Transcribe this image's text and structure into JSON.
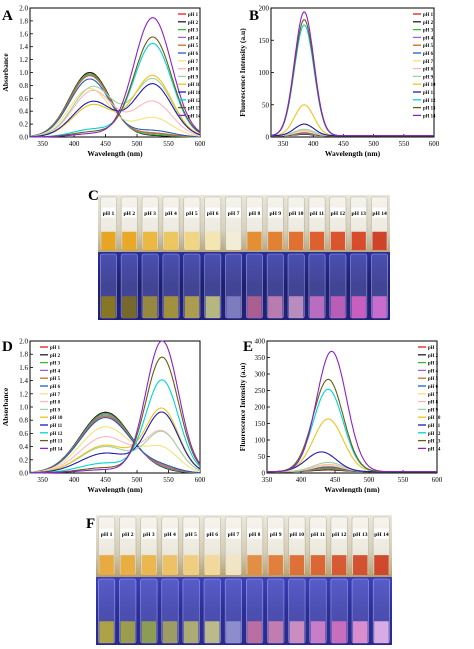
{
  "colors": {
    "pH 1": "#e41a1c",
    "pH 2": "#222222",
    "pH 3": "#2bbf2b",
    "pH 4": "#9966cc",
    "pH 5": "#d2691e",
    "pH 6": "#1f5fbf",
    "pH 7": "#f6e27a",
    "pH 8": "#ffb6c1",
    "pH 9": "#9fd39f",
    "pH 10": "#f0c419",
    "pH 11": "#1c1cb0",
    "pH 12": "#00d5d5",
    "pH 13": "#6b5d10",
    "pH 14": "#8b22c9"
  },
  "panels": {
    "A": "A",
    "B": "B",
    "C": "C",
    "D": "D",
    "E": "E",
    "F": "F"
  },
  "vials": [
    "pH 1",
    "pH 2",
    "pH 3",
    "pH 4",
    "pH 5",
    "pH 6",
    "pH 7",
    "pH 8",
    "pH 9",
    "pH 10",
    "pH 11",
    "pH 12",
    "pH 13",
    "pH 14"
  ],
  "chart_data": [
    {
      "panel": "A",
      "type": "line",
      "xlabel": "Wavelength (nm)",
      "ylabel": "Absorbance",
      "xlim": [
        330,
        600
      ],
      "ylim": [
        0,
        2.0
      ],
      "xticks": [
        350,
        400,
        450,
        500,
        550,
        600
      ],
      "yticks": [
        0.0,
        0.2,
        0.4,
        0.6,
        0.8,
        1.0,
        1.2,
        1.4,
        1.6,
        1.8,
        2.0
      ],
      "legend": "top-right",
      "series": [
        {
          "name": "pH 1",
          "peaks": [
            [
              425,
              1.0
            ],
            [
              525,
              0.02
            ]
          ]
        },
        {
          "name": "pH 2",
          "peaks": [
            [
              425,
              1.0
            ],
            [
              525,
              0.02
            ]
          ]
        },
        {
          "name": "pH 3",
          "peaks": [
            [
              425,
              0.98
            ],
            [
              525,
              0.03
            ]
          ]
        },
        {
          "name": "pH 4",
          "peaks": [
            [
              425,
              0.96
            ],
            [
              525,
              0.05
            ]
          ]
        },
        {
          "name": "pH 5",
          "peaks": [
            [
              425,
              0.95
            ],
            [
              525,
              0.06
            ]
          ]
        },
        {
          "name": "pH 6",
          "peaks": [
            [
              425,
              0.9
            ],
            [
              525,
              0.1
            ]
          ]
        },
        {
          "name": "pH 7",
          "peaks": [
            [
              425,
              0.75
            ],
            [
              525,
              0.3
            ]
          ]
        },
        {
          "name": "pH 8",
          "peaks": [
            [
              430,
              0.72
            ],
            [
              525,
              0.55
            ]
          ]
        },
        {
          "name": "pH 9",
          "peaks": [
            [
              430,
              0.78
            ],
            [
              525,
              0.9
            ]
          ]
        },
        {
          "name": "pH 10",
          "peaks": [
            [
              430,
              0.5
            ],
            [
              525,
              0.95
            ]
          ]
        },
        {
          "name": "pH 11",
          "peaks": [
            [
              430,
              0.55
            ],
            [
              525,
              0.82
            ]
          ]
        },
        {
          "name": "pH 12",
          "peaks": [
            [
              430,
              0.12
            ],
            [
              525,
              1.45
            ]
          ]
        },
        {
          "name": "pH 13",
          "peaks": [
            [
              430,
              0.08
            ],
            [
              525,
              1.55
            ]
          ]
        },
        {
          "name": "pH 14",
          "peaks": [
            [
              430,
              0.05
            ],
            [
              525,
              1.85
            ]
          ]
        }
      ]
    },
    {
      "panel": "B",
      "type": "line",
      "xlabel": "Wavelength (nm)",
      "ylabel": "Fluorescence Intensity (a.u)",
      "xlim": [
        330,
        600
      ],
      "ylim": [
        0,
        200
      ],
      "xticks": [
        350,
        400,
        450,
        500,
        550,
        600
      ],
      "yticks": [
        0,
        50,
        100,
        150,
        200
      ],
      "legend": "top-right",
      "series": [
        {
          "name": "pH 1",
          "peak": [
            385,
            2
          ]
        },
        {
          "name": "pH 2",
          "peak": [
            385,
            2
          ]
        },
        {
          "name": "pH 3",
          "peak": [
            385,
            3
          ]
        },
        {
          "name": "pH 4",
          "peak": [
            385,
            3
          ]
        },
        {
          "name": "pH 5",
          "peak": [
            385,
            4
          ]
        },
        {
          "name": "pH 6",
          "peak": [
            385,
            5
          ]
        },
        {
          "name": "pH 7",
          "peak": [
            385,
            6
          ]
        },
        {
          "name": "pH 8",
          "peak": [
            385,
            8
          ]
        },
        {
          "name": "pH 9",
          "peak": [
            385,
            10
          ]
        },
        {
          "name": "pH 10",
          "peak": [
            385,
            48
          ]
        },
        {
          "name": "pH 11",
          "peak": [
            385,
            18
          ]
        },
        {
          "name": "pH 12",
          "peak": [
            385,
            172
          ]
        },
        {
          "name": "pH 13",
          "peak": [
            385,
            180
          ]
        },
        {
          "name": "pH 14",
          "peak": [
            385,
            192
          ]
        }
      ]
    },
    {
      "panel": "D",
      "type": "line",
      "xlabel": "Wavelength (nm)",
      "ylabel": "Absorbance",
      "xlim": [
        330,
        600
      ],
      "ylim": [
        0,
        2.0
      ],
      "xticks": [
        350,
        400,
        450,
        500,
        550,
        600
      ],
      "yticks": [
        0.0,
        0.2,
        0.4,
        0.6,
        0.8,
        1.0,
        1.2,
        1.4,
        1.6,
        1.8,
        2.0
      ],
      "legend": "top-left",
      "series": [
        {
          "name": "pH 1",
          "peaks": [
            [
              450,
              0.92
            ],
            [
              540,
              0.02
            ]
          ]
        },
        {
          "name": "pH 2",
          "peaks": [
            [
              450,
              0.92
            ],
            [
              540,
              0.02
            ]
          ]
        },
        {
          "name": "pH 3",
          "peaks": [
            [
              450,
              0.9
            ],
            [
              540,
              0.03
            ]
          ]
        },
        {
          "name": "pH 4",
          "peaks": [
            [
              450,
              0.88
            ],
            [
              540,
              0.04
            ]
          ]
        },
        {
          "name": "pH 5",
          "peaks": [
            [
              450,
              0.86
            ],
            [
              540,
              0.06
            ]
          ]
        },
        {
          "name": "pH 6",
          "peaks": [
            [
              450,
              0.84
            ],
            [
              540,
              0.08
            ]
          ]
        },
        {
          "name": "pH 7",
          "peaks": [
            [
              450,
              0.7
            ],
            [
              540,
              0.35
            ]
          ]
        },
        {
          "name": "pH 8",
          "peaks": [
            [
              450,
              0.55
            ],
            [
              540,
              0.6
            ]
          ]
        },
        {
          "name": "pH 9",
          "peaks": [
            [
              450,
              0.4
            ],
            [
              540,
              0.6
            ]
          ]
        },
        {
          "name": "pH 10",
          "peaks": [
            [
              450,
              0.42
            ],
            [
              540,
              0.95
            ]
          ]
        },
        {
          "name": "pH 11",
          "peaks": [
            [
              450,
              0.3
            ],
            [
              540,
              0.9
            ]
          ]
        },
        {
          "name": "pH 12",
          "peaks": [
            [
              450,
              0.15
            ],
            [
              540,
              1.4
            ]
          ]
        },
        {
          "name": "pH 13",
          "peaks": [
            [
              450,
              0.08
            ],
            [
              540,
              1.75
            ]
          ]
        },
        {
          "name": "pH 14",
          "peaks": [
            [
              450,
              0.05
            ],
            [
              540,
              2.0
            ]
          ]
        }
      ]
    },
    {
      "panel": "E",
      "type": "line",
      "xlabel": "Wavelength (nm)",
      "ylabel": "Fluorescence Intensity (a.u)",
      "xlim": [
        350,
        600
      ],
      "ylim": [
        0,
        400
      ],
      "xticks": [
        350,
        400,
        450,
        500,
        550,
        600
      ],
      "yticks": [
        0,
        50,
        100,
        150,
        200,
        250,
        300,
        350,
        400
      ],
      "legend": "top-right",
      "series": [
        {
          "name": "pH 1",
          "peak": [
            440,
            5
          ]
        },
        {
          "name": "pH 2",
          "peak": [
            440,
            6
          ]
        },
        {
          "name": "pH 3",
          "peak": [
            440,
            8
          ]
        },
        {
          "name": "pH 4",
          "peak": [
            440,
            10
          ]
        },
        {
          "name": "pH 5",
          "peak": [
            440,
            12
          ]
        },
        {
          "name": "pH 6",
          "peak": [
            440,
            15
          ]
        },
        {
          "name": "pH 7",
          "peak": [
            440,
            18
          ]
        },
        {
          "name": "pH 8",
          "peak": [
            440,
            22
          ]
        },
        {
          "name": "pH 9",
          "peak": [
            440,
            28
          ]
        },
        {
          "name": "pH 10",
          "peak": [
            440,
            160
          ]
        },
        {
          "name": "pH 11",
          "peak": [
            430,
            60
          ]
        },
        {
          "name": "pH 12",
          "peak": [
            440,
            250
          ]
        },
        {
          "name": "pH 13",
          "peak": [
            440,
            280
          ]
        },
        {
          "name": "pH 14",
          "peak": [
            445,
            365
          ]
        }
      ]
    }
  ]
}
